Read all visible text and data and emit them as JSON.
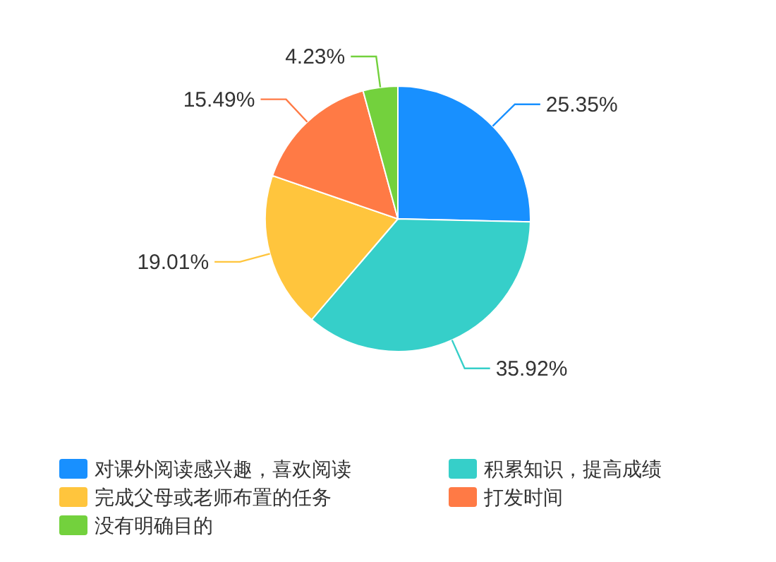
{
  "chart_data": {
    "type": "pie",
    "categories": [
      "对课外阅读感兴趣，喜欢阅读",
      "积累知识，提高成绩",
      "完成父母或老师布置的任务",
      "打发时间",
      "没有明确目的"
    ],
    "values": [
      25.35,
      35.92,
      19.01,
      15.49,
      4.23
    ],
    "colors": [
      "#1890ff",
      "#36cfc9",
      "#ffc53d",
      "#ff7a45",
      "#73d13d"
    ],
    "value_labels": [
      "25.35%",
      "35.92%",
      "19.01%",
      "15.49%",
      "4.23%"
    ],
    "legend": "bottom"
  }
}
